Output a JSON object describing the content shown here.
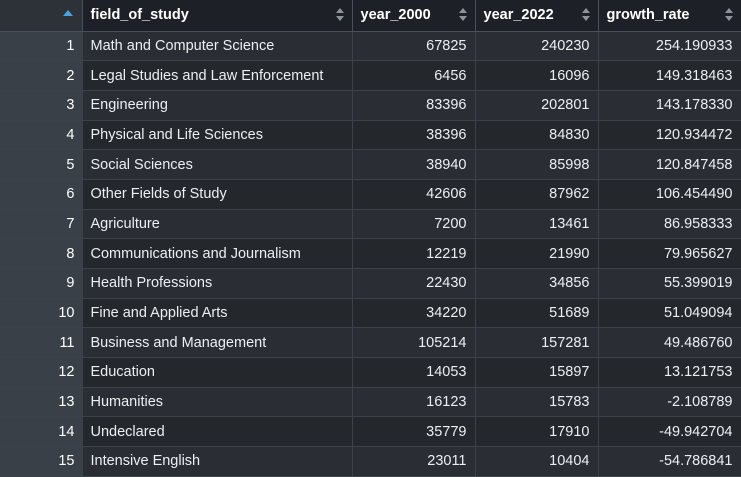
{
  "columns": {
    "index": "",
    "field": "field_of_study",
    "year2000": "year_2000",
    "year2022": "year_2022",
    "growth": "growth_rate"
  },
  "sort": {
    "column": "index",
    "direction": "ascending"
  },
  "colors": {
    "sort_accent": "#4aa3df",
    "header_bg": "#1d2127",
    "row_bg_odd": "#2a2e34",
    "row_bg_even": "#24282d"
  },
  "rows": [
    {
      "index": "1",
      "field": "Math and Computer Science",
      "year2000": "67825",
      "year2022": "240230",
      "growth": "254.190933"
    },
    {
      "index": "2",
      "field": "Legal Studies and Law Enforcement",
      "year2000": "6456",
      "year2022": "16096",
      "growth": "149.318463"
    },
    {
      "index": "3",
      "field": "Engineering",
      "year2000": "83396",
      "year2022": "202801",
      "growth": "143.178330"
    },
    {
      "index": "4",
      "field": "Physical and Life Sciences",
      "year2000": "38396",
      "year2022": "84830",
      "growth": "120.934472"
    },
    {
      "index": "5",
      "field": "Social Sciences",
      "year2000": "38940",
      "year2022": "85998",
      "growth": "120.847458"
    },
    {
      "index": "6",
      "field": "Other Fields of Study",
      "year2000": "42606",
      "year2022": "87962",
      "growth": "106.454490"
    },
    {
      "index": "7",
      "field": "Agriculture",
      "year2000": "7200",
      "year2022": "13461",
      "growth": "86.958333"
    },
    {
      "index": "8",
      "field": "Communications and Journalism",
      "year2000": "12219",
      "year2022": "21990",
      "growth": "79.965627"
    },
    {
      "index": "9",
      "field": "Health Professions",
      "year2000": "22430",
      "year2022": "34856",
      "growth": "55.399019"
    },
    {
      "index": "10",
      "field": "Fine and Applied Arts",
      "year2000": "34220",
      "year2022": "51689",
      "growth": "51.049094"
    },
    {
      "index": "11",
      "field": "Business and Management",
      "year2000": "105214",
      "year2022": "157281",
      "growth": "49.486760"
    },
    {
      "index": "12",
      "field": "Education",
      "year2000": "14053",
      "year2022": "15897",
      "growth": "13.121753"
    },
    {
      "index": "13",
      "field": "Humanities",
      "year2000": "16123",
      "year2022": "15783",
      "growth": "-2.108789"
    },
    {
      "index": "14",
      "field": "Undeclared",
      "year2000": "35779",
      "year2022": "17910",
      "growth": "-49.942704"
    },
    {
      "index": "15",
      "field": "Intensive English",
      "year2000": "23011",
      "year2022": "10404",
      "growth": "-54.786841"
    }
  ]
}
